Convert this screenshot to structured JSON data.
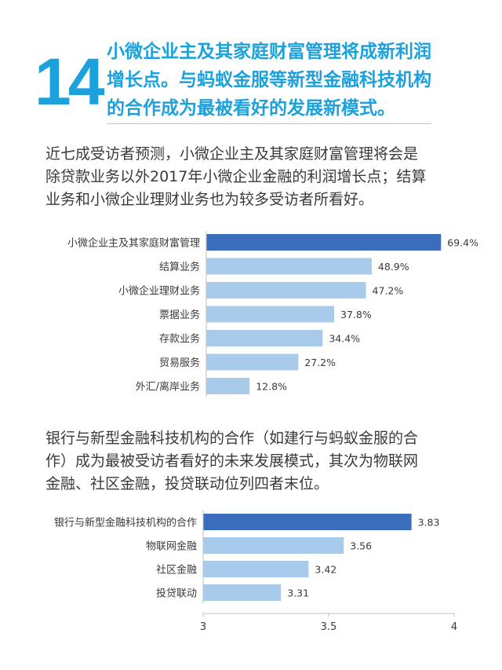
{
  "header": {
    "number": "14",
    "headline_lines": [
      "小微企业主及其家庭财富管理将成新利润",
      "增长点。与蚂蚁金服等新型金融科技机构",
      "的合作成为最被看好的发展新模式。"
    ]
  },
  "paragraph1": {
    "lines": [
      "近七成受访者预测，小微企业主及其家庭财富管理将会是",
      "除贷款业务以外2017年小微企业金融的利润增长点；结算",
      "业务和小微企业理财业务也为较多受访者所看好。"
    ]
  },
  "paragraph2": {
    "lines": [
      "银行与新型金融科技机构的合作（如建行与蚂蚁金服的合",
      "作）成为最被受访者看好的未来发展模式，其次为物联网",
      "金融、社区金融，投贷联动位列四者末位。"
    ]
  },
  "colors": {
    "accent": "#1ba1dc",
    "bar_highlight": "#3a6dbb",
    "bar_normal": "#a9cbeb"
  },
  "chart_data": [
    {
      "type": "bar",
      "orientation": "horizontal",
      "categories": [
        "小微企业主及其家庭财富管理",
        "结算业务",
        "小微企业理财业务",
        "票据业务",
        "存款业务",
        "贸易服务",
        "外汇/离岸业务"
      ],
      "values": [
        69.4,
        48.9,
        47.2,
        37.8,
        34.4,
        27.2,
        12.8
      ],
      "labels": [
        "69.4%",
        "48.9%",
        "47.2%",
        "37.8%",
        "34.4%",
        "27.2%",
        "12.8%"
      ],
      "xlim": [
        0,
        80
      ],
      "highlight_index": 0,
      "grid": false
    },
    {
      "type": "bar",
      "orientation": "horizontal",
      "categories": [
        "银行与新型金融科技机构的合作",
        "物联网金融",
        "社区金融",
        "投贷联动"
      ],
      "values": [
        3.83,
        3.56,
        3.42,
        3.31
      ],
      "labels": [
        "3.83",
        "3.56",
        "3.42",
        "3.31"
      ],
      "xlim": [
        3,
        4
      ],
      "xticks": [
        "3",
        "3.5",
        "4"
      ],
      "highlight_index": 0,
      "grid": false
    }
  ]
}
